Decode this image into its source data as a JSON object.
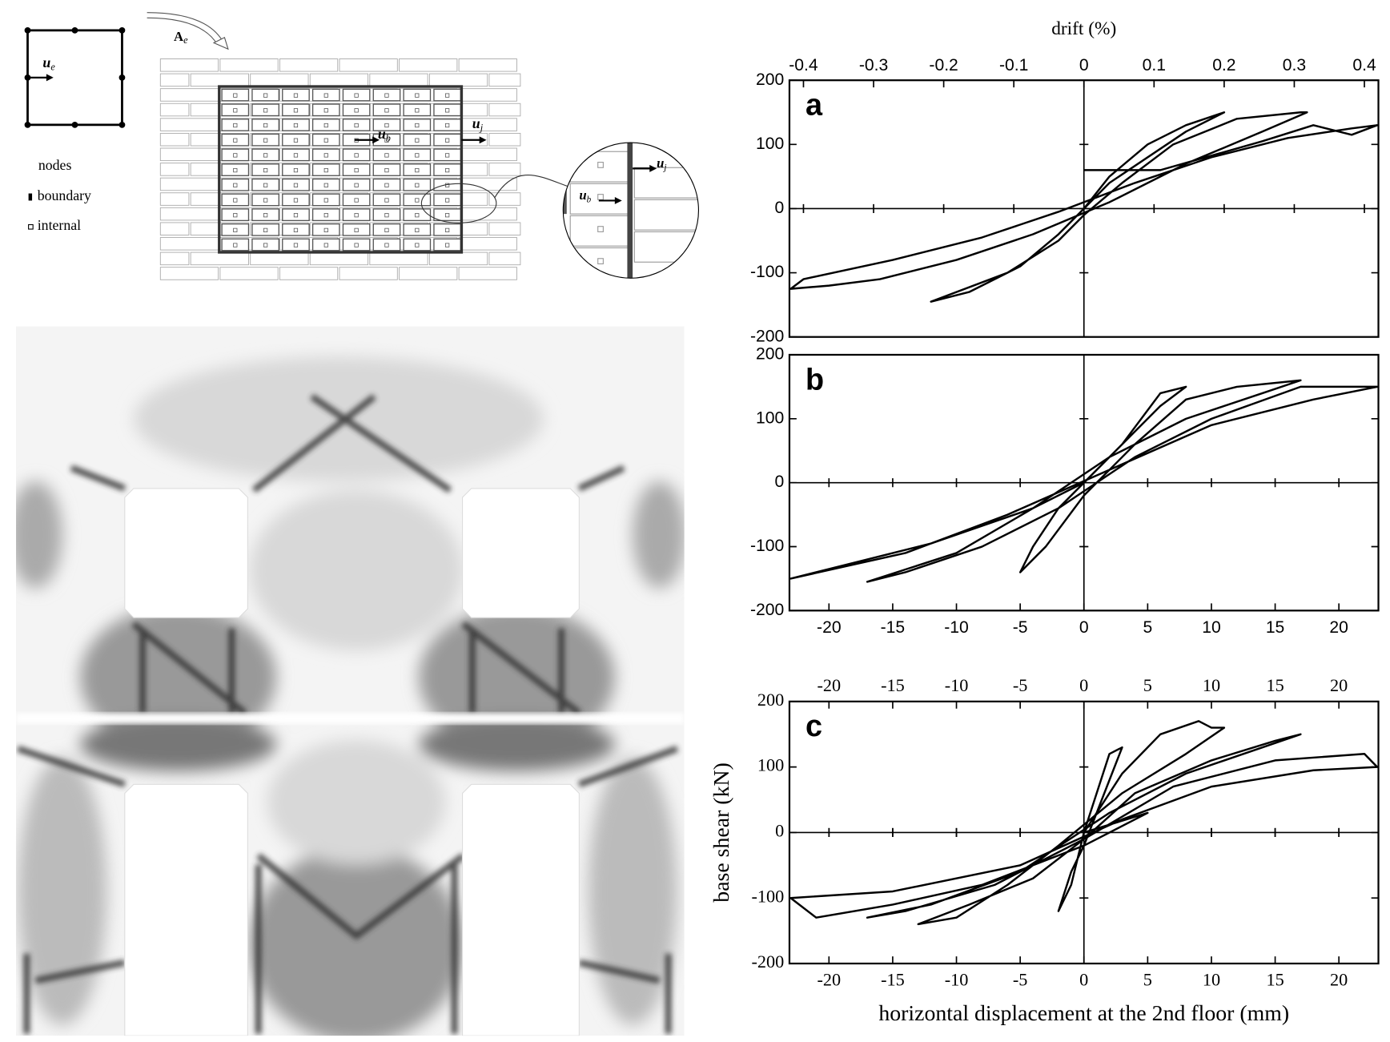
{
  "diagram": {
    "element_displacement": {
      "symbol": "u",
      "subscript": "e"
    },
    "element_area": {
      "symbol": "A",
      "subscript": "e"
    },
    "joint_displacement": {
      "symbol": "u",
      "subscript": "j"
    },
    "block_displacement": {
      "symbol": "u",
      "subscript": "b"
    },
    "legend": {
      "title": "nodes",
      "items": [
        "boundary",
        "internal"
      ]
    }
  },
  "chart_data": [
    {
      "type": "line",
      "label": "a",
      "x": [
        0,
        2,
        5,
        8,
        11,
        8,
        2,
        0,
        -2,
        -5,
        -9,
        -12,
        -6,
        -2,
        0,
        3,
        7,
        12,
        17,
        17.5,
        14,
        8,
        2,
        -4,
        -10,
        -16,
        -20,
        -23,
        -22,
        -15,
        -8,
        -2,
        4,
        10,
        16,
        21,
        23,
        21,
        18,
        14,
        6,
        0
      ],
      "values": [
        0,
        50,
        100,
        130,
        150,
        120,
        40,
        0,
        -40,
        -90,
        -130,
        -145,
        -100,
        -50,
        -10,
        40,
        100,
        140,
        150,
        150,
        120,
        70,
        10,
        -40,
        -80,
        -110,
        -120,
        -125,
        -110,
        -80,
        -45,
        -5,
        40,
        80,
        110,
        125,
        130,
        115,
        130,
        105,
        60,
        60
      ],
      "xlim": [
        -23.1,
        23.1
      ],
      "ylim": [
        -200,
        200
      ],
      "yticks": [
        -200,
        -100,
        0,
        100,
        200
      ],
      "x2lim": [
        -0.42,
        0.42
      ],
      "x2ticks": [
        -0.4,
        -0.3,
        -0.2,
        -0.1,
        0,
        0.1,
        0.2,
        0.3,
        0.4
      ],
      "x2label": "drift (%)"
    },
    {
      "type": "line",
      "label": "b",
      "x": [
        0,
        3,
        6,
        8,
        6,
        2,
        -2,
        -4,
        -5,
        -3,
        0,
        4,
        8,
        12,
        17,
        14,
        8,
        2,
        -4,
        -10,
        -17,
        -14,
        -8,
        -2,
        4,
        10,
        17,
        23,
        18,
        10,
        2,
        -6,
        -14,
        -23,
        -20,
        -12,
        -4,
        0
      ],
      "values": [
        0,
        60,
        140,
        150,
        120,
        40,
        -40,
        -100,
        -140,
        -100,
        -20,
        60,
        130,
        150,
        160,
        140,
        100,
        40,
        -40,
        -110,
        -155,
        -140,
        -100,
        -40,
        40,
        100,
        150,
        150,
        130,
        90,
        20,
        -50,
        -110,
        -150,
        -135,
        -95,
        -40,
        0
      ],
      "xlim": [
        -23.1,
        23.1
      ],
      "ylim": [
        -200,
        200
      ],
      "yticks": [
        -200,
        -100,
        0,
        100,
        200
      ],
      "xticks": [
        -20,
        -15,
        -10,
        -5,
        0,
        5,
        10,
        15,
        20
      ]
    },
    {
      "type": "line",
      "label": "c",
      "x": [
        0,
        1,
        2,
        3,
        2,
        0,
        -1,
        -2,
        -1,
        0,
        3,
        6,
        9,
        10,
        11,
        8,
        3,
        -2,
        -6,
        -10,
        -13,
        -9,
        -4,
        0,
        4,
        10,
        15,
        17,
        14,
        8,
        2,
        -5,
        -12,
        -17,
        -14,
        -7,
        0,
        7,
        15,
        22,
        23,
        18,
        10,
        3,
        -5,
        -15,
        -23,
        -21,
        -15,
        -8,
        0,
        5,
        0
      ],
      "values": [
        0,
        60,
        120,
        130,
        80,
        -20,
        -60,
        -120,
        -80,
        0,
        90,
        150,
        170,
        160,
        160,
        120,
        60,
        -20,
        -80,
        -130,
        -140,
        -110,
        -70,
        -10,
        60,
        110,
        140,
        150,
        130,
        90,
        30,
        -60,
        -110,
        -130,
        -120,
        -80,
        -10,
        70,
        110,
        120,
        100,
        95,
        70,
        20,
        -50,
        -90,
        -100,
        -130,
        -110,
        -80,
        -20,
        30,
        0
      ],
      "xlim": [
        -23.1,
        23.1
      ],
      "ylim": [
        -200,
        200
      ],
      "yticks": [
        -200,
        -100,
        0,
        100,
        200
      ],
      "xticks": [
        -20,
        -15,
        -10,
        -5,
        0,
        5,
        10,
        15,
        20
      ],
      "x2lim": [
        -23.1,
        23.1
      ],
      "x2ticks": [
        -20,
        -15,
        -10,
        -5,
        0,
        5,
        10,
        15,
        20
      ],
      "xlabel": "horizontal displacement at the 2nd floor (mm)",
      "ylabel": "base shear (kN)"
    }
  ]
}
